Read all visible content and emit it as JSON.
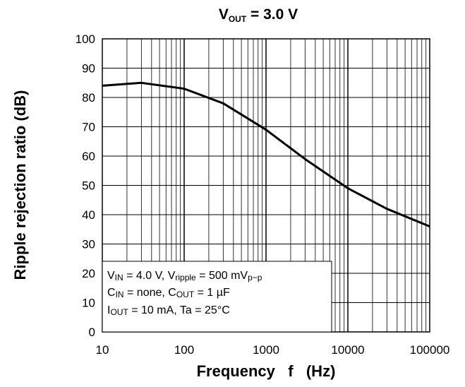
{
  "chart_data": {
    "type": "line",
    "title": {
      "main": "V",
      "sub": "OUT",
      "rest": " = 3.0 V"
    },
    "xlabel": "Frequency   f   (Hz)",
    "ylabel": "Ripple rejection ratio (dB)",
    "xscale": "log",
    "xlim": [
      10,
      100000
    ],
    "ylim": [
      0,
      100
    ],
    "x_ticks": [
      "10",
      "100",
      "1000",
      "10000",
      "100000"
    ],
    "y_ticks": [
      "0",
      "10",
      "20",
      "30",
      "40",
      "50",
      "60",
      "70",
      "80",
      "90",
      "100"
    ],
    "grid": true,
    "series": [
      {
        "x": [
          10,
          30,
          100,
          300,
          1000,
          3000,
          10000,
          30000,
          100000
        ],
        "y": [
          84,
          85,
          83,
          78,
          69,
          59,
          49,
          42,
          36
        ]
      }
    ],
    "annotation": {
      "line1": {
        "a": "V",
        "a_sub": "IN",
        "b": " = 4.0 V, V",
        "b_sub": "ripple",
        "c": " = 500 mV",
        "c_sub": "p−p"
      },
      "line2": {
        "a": "C",
        "a_sub": "IN",
        "b": " = none, C",
        "b_sub": "OUT",
        "c": " = 1 µF"
      },
      "line3": {
        "a": "I",
        "a_sub": "OUT",
        "b": " = 10 mA, Ta = 25°C"
      }
    }
  }
}
